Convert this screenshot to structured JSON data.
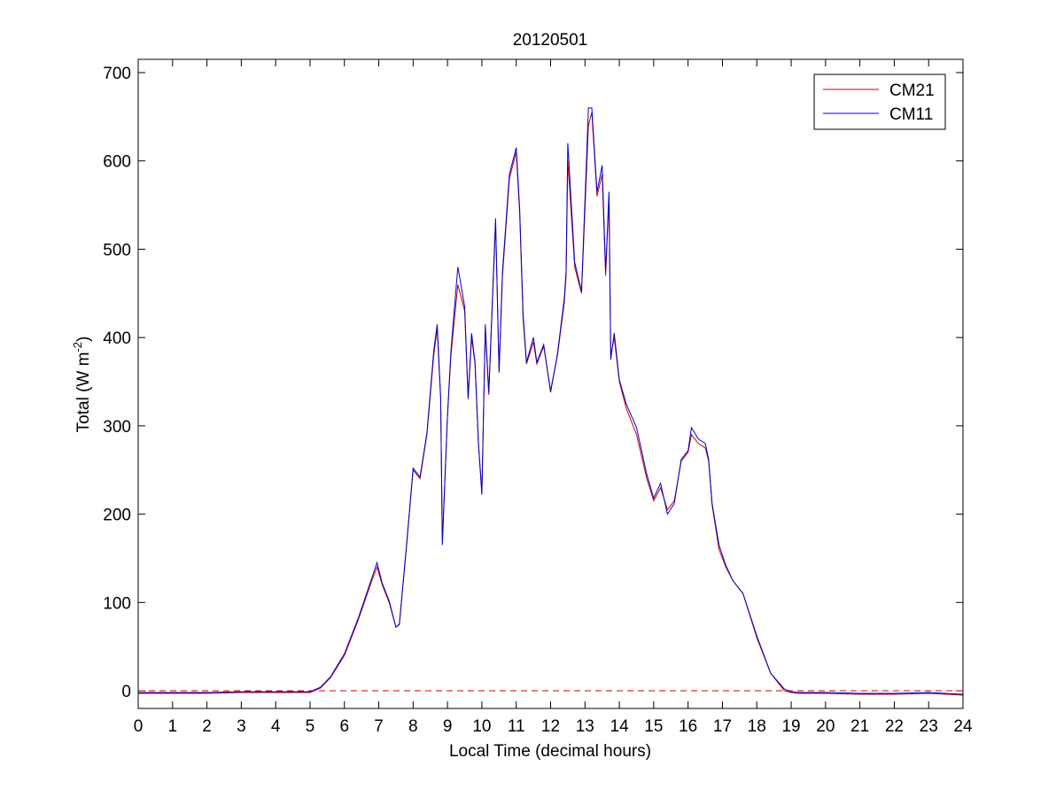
{
  "chart_data": {
    "type": "line",
    "title": "20120501",
    "xlabel": "Local Time (decimal hours)",
    "ylabel": {
      "prefix": "Total (W m",
      "superscript": "-2",
      "suffix": ")"
    },
    "xlim": [
      0,
      24
    ],
    "ylim": [
      -20,
      715
    ],
    "xticks": [
      0,
      1,
      2,
      3,
      4,
      5,
      6,
      7,
      8,
      9,
      10,
      11,
      12,
      13,
      14,
      15,
      16,
      17,
      18,
      19,
      20,
      21,
      22,
      23,
      24
    ],
    "yticks": [
      0,
      100,
      200,
      300,
      400,
      500,
      600,
      700
    ],
    "grid": false,
    "legend_position": "top-right",
    "reference_line": {
      "y": 0,
      "color": "#cc0000",
      "style": "dashed"
    },
    "series": [
      {
        "name": "CM21",
        "color": "#cc0000",
        "x": [
          0,
          1,
          2,
          3,
          4,
          5,
          5.3,
          5.6,
          6.0,
          6.4,
          6.8,
          6.95,
          7.1,
          7.3,
          7.5,
          7.6,
          7.8,
          8.0,
          8.2,
          8.4,
          8.6,
          8.7,
          8.8,
          8.85,
          9.0,
          9.1,
          9.3,
          9.5,
          9.6,
          9.7,
          9.8,
          9.9,
          10.0,
          10.1,
          10.2,
          10.4,
          10.5,
          10.6,
          10.8,
          11.0,
          11.1,
          11.2,
          11.3,
          11.5,
          11.6,
          11.8,
          12.0,
          12.2,
          12.4,
          12.45,
          12.5,
          12.7,
          12.9,
          13.1,
          13.2,
          13.35,
          13.5,
          13.6,
          13.7,
          13.75,
          13.85,
          14.0,
          14.2,
          14.5,
          14.8,
          15.0,
          15.2,
          15.4,
          15.6,
          15.8,
          16.0,
          16.1,
          16.3,
          16.5,
          16.6,
          16.7,
          16.9,
          17.1,
          17.3,
          17.6,
          18.0,
          18.4,
          18.8,
          19.0,
          19.2,
          20,
          21,
          22,
          23,
          24
        ],
        "y": [
          -3,
          -3,
          -3,
          -2,
          -2,
          -2,
          3,
          15,
          40,
          80,
          125,
          140,
          120,
          100,
          72,
          75,
          160,
          250,
          240,
          290,
          380,
          410,
          330,
          170,
          310,
          380,
          460,
          430,
          330,
          400,
          370,
          280,
          225,
          410,
          335,
          530,
          360,
          470,
          580,
          610,
          540,
          420,
          370,
          395,
          370,
          390,
          340,
          380,
          440,
          470,
          600,
          480,
          450,
          640,
          655,
          560,
          585,
          470,
          560,
          380,
          400,
          350,
          320,
          290,
          240,
          215,
          230,
          205,
          215,
          260,
          270,
          290,
          280,
          275,
          260,
          210,
          160,
          140,
          125,
          110,
          60,
          20,
          0,
          -2,
          -3,
          -3,
          -4,
          -4,
          -3,
          -5
        ]
      },
      {
        "name": "CM11",
        "color": "#0000cc",
        "x": [
          0,
          1,
          2,
          3,
          4,
          5,
          5.3,
          5.6,
          6.0,
          6.4,
          6.8,
          6.95,
          7.1,
          7.3,
          7.5,
          7.6,
          7.8,
          8.0,
          8.2,
          8.4,
          8.6,
          8.7,
          8.8,
          8.85,
          9.0,
          9.1,
          9.3,
          9.5,
          9.6,
          9.7,
          9.8,
          9.9,
          10.0,
          10.1,
          10.2,
          10.4,
          10.5,
          10.6,
          10.8,
          11.0,
          11.1,
          11.2,
          11.3,
          11.5,
          11.6,
          11.8,
          12.0,
          12.2,
          12.4,
          12.45,
          12.5,
          12.7,
          12.9,
          13.1,
          13.2,
          13.35,
          13.5,
          13.6,
          13.7,
          13.75,
          13.85,
          14.0,
          14.2,
          14.5,
          14.8,
          15.0,
          15.2,
          15.4,
          15.6,
          15.8,
          16.0,
          16.1,
          16.3,
          16.5,
          16.6,
          16.7,
          16.9,
          17.1,
          17.3,
          17.6,
          18.0,
          18.4,
          18.8,
          19.0,
          19.2,
          20,
          21,
          22,
          23,
          24
        ],
        "y": [
          -2,
          -2,
          -2,
          -1,
          -1,
          -1,
          4,
          16,
          42,
          82,
          128,
          145,
          122,
          102,
          72,
          76,
          162,
          252,
          242,
          292,
          385,
          415,
          332,
          165,
          312,
          385,
          480,
          435,
          332,
          405,
          372,
          282,
          222,
          415,
          338,
          535,
          362,
          475,
          585,
          615,
          545,
          425,
          372,
          400,
          372,
          392,
          338,
          382,
          445,
          475,
          620,
          485,
          452,
          660,
          660,
          565,
          595,
          475,
          565,
          375,
          405,
          352,
          325,
          298,
          245,
          218,
          235,
          200,
          212,
          262,
          272,
          298,
          285,
          280,
          262,
          212,
          165,
          142,
          125,
          110,
          62,
          20,
          2,
          -1,
          -2,
          -2,
          -3,
          -3,
          -2,
          -4
        ]
      }
    ]
  }
}
